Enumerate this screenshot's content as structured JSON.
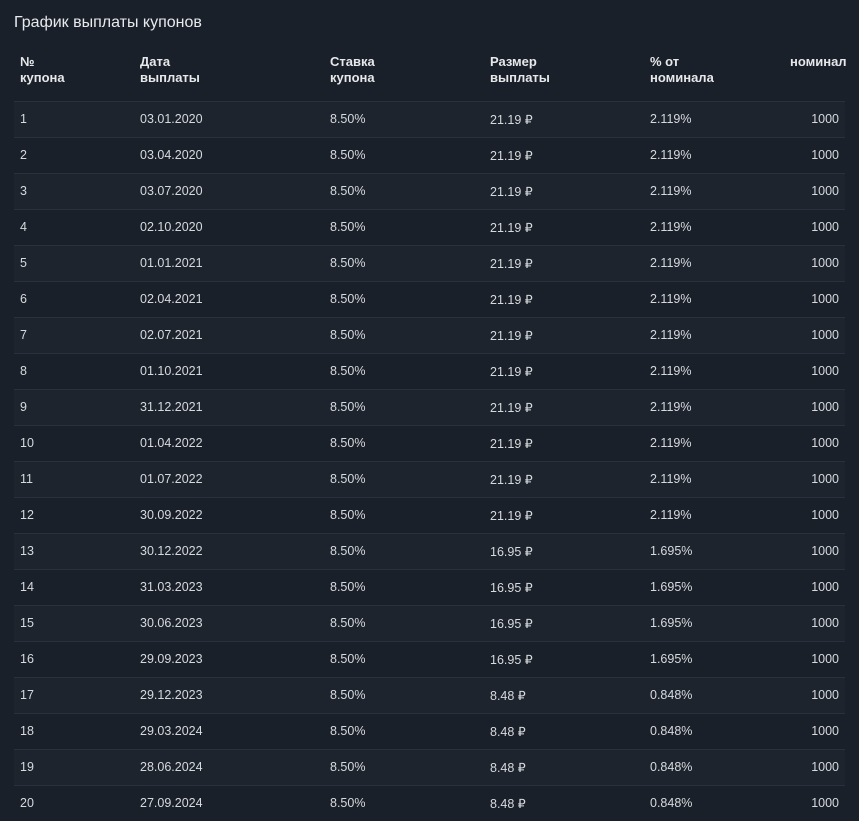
{
  "title": "График выплаты купонов",
  "colors": {
    "background": "#1a2029",
    "row_alt": "#1d242e",
    "border": "#2a313c",
    "text": "#e6e8ea",
    "text_body": "#d7dadd"
  },
  "table": {
    "columns": [
      {
        "key": "num",
        "label": "№\nкупона",
        "align": "left"
      },
      {
        "key": "date",
        "label": "Дата\nвыплаты",
        "align": "left"
      },
      {
        "key": "rate",
        "label": "Ставка\nкупона",
        "align": "left"
      },
      {
        "key": "amount",
        "label": "Размер\nвыплаты",
        "align": "left"
      },
      {
        "key": "pct",
        "label": "% от\nноминала",
        "align": "left"
      },
      {
        "key": "nominal",
        "label": "номинал",
        "align": "right"
      }
    ],
    "currency_suffix": " ₽",
    "rows": [
      {
        "num": "1",
        "date": "03.01.2020",
        "rate": "8.50%",
        "amount": "21.19 ₽",
        "pct": "2.119%",
        "nominal": "1000"
      },
      {
        "num": "2",
        "date": "03.04.2020",
        "rate": "8.50%",
        "amount": "21.19 ₽",
        "pct": "2.119%",
        "nominal": "1000"
      },
      {
        "num": "3",
        "date": "03.07.2020",
        "rate": "8.50%",
        "amount": "21.19 ₽",
        "pct": "2.119%",
        "nominal": "1000"
      },
      {
        "num": "4",
        "date": "02.10.2020",
        "rate": "8.50%",
        "amount": "21.19 ₽",
        "pct": "2.119%",
        "nominal": "1000"
      },
      {
        "num": "5",
        "date": "01.01.2021",
        "rate": "8.50%",
        "amount": "21.19 ₽",
        "pct": "2.119%",
        "nominal": "1000"
      },
      {
        "num": "6",
        "date": "02.04.2021",
        "rate": "8.50%",
        "amount": "21.19 ₽",
        "pct": "2.119%",
        "nominal": "1000"
      },
      {
        "num": "7",
        "date": "02.07.2021",
        "rate": "8.50%",
        "amount": "21.19 ₽",
        "pct": "2.119%",
        "nominal": "1000"
      },
      {
        "num": "8",
        "date": "01.10.2021",
        "rate": "8.50%",
        "amount": "21.19 ₽",
        "pct": "2.119%",
        "nominal": "1000"
      },
      {
        "num": "9",
        "date": "31.12.2021",
        "rate": "8.50%",
        "amount": "21.19 ₽",
        "pct": "2.119%",
        "nominal": "1000"
      },
      {
        "num": "10",
        "date": "01.04.2022",
        "rate": "8.50%",
        "amount": "21.19 ₽",
        "pct": "2.119%",
        "nominal": "1000"
      },
      {
        "num": "11",
        "date": "01.07.2022",
        "rate": "8.50%",
        "amount": "21.19 ₽",
        "pct": "2.119%",
        "nominal": "1000"
      },
      {
        "num": "12",
        "date": "30.09.2022",
        "rate": "8.50%",
        "amount": "21.19 ₽",
        "pct": "2.119%",
        "nominal": "1000"
      },
      {
        "num": "13",
        "date": "30.12.2022",
        "rate": "8.50%",
        "amount": "16.95 ₽",
        "pct": "1.695%",
        "nominal": "1000"
      },
      {
        "num": "14",
        "date": "31.03.2023",
        "rate": "8.50%",
        "amount": "16.95 ₽",
        "pct": "1.695%",
        "nominal": "1000"
      },
      {
        "num": "15",
        "date": "30.06.2023",
        "rate": "8.50%",
        "amount": "16.95 ₽",
        "pct": "1.695%",
        "nominal": "1000"
      },
      {
        "num": "16",
        "date": "29.09.2023",
        "rate": "8.50%",
        "amount": "16.95 ₽",
        "pct": "1.695%",
        "nominal": "1000"
      },
      {
        "num": "17",
        "date": "29.12.2023",
        "rate": "8.50%",
        "amount": "8.48 ₽",
        "pct": "0.848%",
        "nominal": "1000"
      },
      {
        "num": "18",
        "date": "29.03.2024",
        "rate": "8.50%",
        "amount": "8.48 ₽",
        "pct": "0.848%",
        "nominal": "1000"
      },
      {
        "num": "19",
        "date": "28.06.2024",
        "rate": "8.50%",
        "amount": "8.48 ₽",
        "pct": "0.848%",
        "nominal": "1000"
      },
      {
        "num": "20",
        "date": "27.09.2024",
        "rate": "8.50%",
        "amount": "8.48 ₽",
        "pct": "0.848%",
        "nominal": "1000"
      }
    ]
  }
}
